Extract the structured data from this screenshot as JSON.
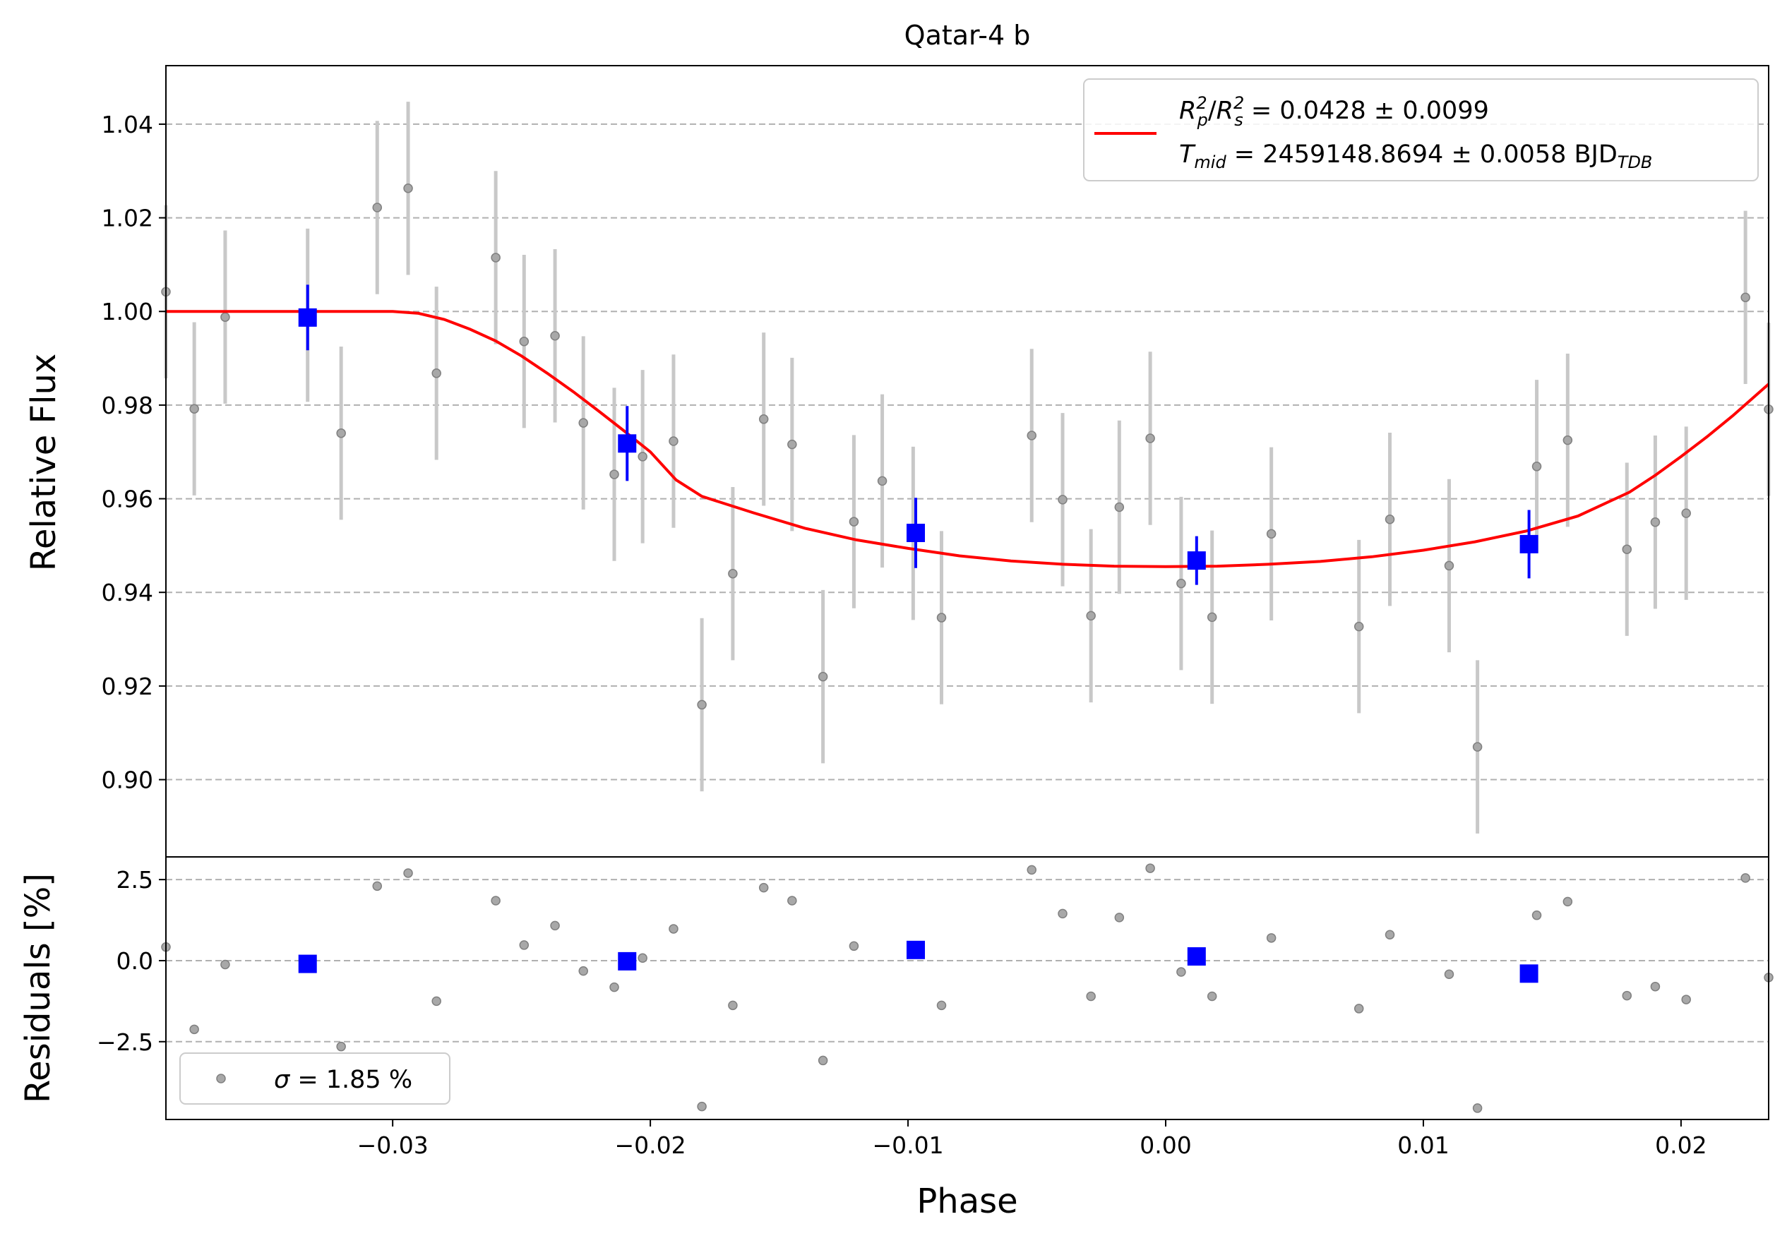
{
  "chart_data": [
    {
      "type": "scatter",
      "title": "Qatar-4 b",
      "xlabel": "",
      "ylabel": "Relative Flux",
      "xlim": [
        -0.0388,
        0.0234
      ],
      "ylim": [
        0.8835,
        1.0525
      ],
      "yticks": [
        0.9,
        0.92,
        0.94,
        0.96,
        0.98,
        1.0,
        1.02,
        1.04
      ],
      "ytick_labels": [
        "0.90",
        "0.92",
        "0.94",
        "0.96",
        "0.98",
        "1.00",
        "1.02",
        "1.04"
      ],
      "grid": "horizontal dashed",
      "legend_placement": "top-right",
      "legend": {
        "model_label_line1": "R_p^2/R_s^2 = 0.0428 ± 0.0099",
        "model_label_line2": "T_mid = 2459148.8694 ± 0.0058 BJD_TDB",
        "rp_symbol": "R",
        "rp_sub": "p",
        "rs_sup": "2",
        "rs_symbol": "R",
        "rs_sub": "s",
        "depth_text": " = 0.0428 ± 0.0099",
        "tmid_symbol": "T",
        "tmid_sub": "mid",
        "tmid_text": " = 2459148.8694 ± 0.0058 BJD",
        "tdb_sub": "TDB"
      },
      "series": [
        {
          "name": "",
          "kind": "raw",
          "color": "#808080",
          "x": [
            -0.0388,
            -0.0377,
            -0.0365,
            -0.0333,
            -0.032,
            -0.0306,
            -0.0294,
            -0.0283,
            -0.026,
            -0.0249,
            -0.0237,
            -0.0226,
            -0.0214,
            -0.0203,
            -0.0191,
            -0.018,
            -0.0168,
            -0.0156,
            -0.0145,
            -0.0133,
            -0.0121,
            -0.011,
            -0.0098,
            -0.0087,
            -0.0052,
            -0.004,
            -0.0029,
            -0.0018,
            -0.0006,
            0.0006,
            0.0018,
            0.0041,
            0.0075,
            0.0087,
            0.011,
            0.0121,
            0.0144,
            0.0156,
            0.0179,
            0.019,
            0.0202,
            0.0225,
            0.0234
          ],
          "y": [
            1.0042,
            0.9792,
            0.9988,
            0.9992,
            0.974,
            1.0222,
            1.0263,
            0.9868,
            1.0115,
            0.9936,
            0.9948,
            0.9762,
            0.9652,
            0.969,
            0.9723,
            0.916,
            0.944,
            0.977,
            0.9716,
            0.922,
            0.9551,
            0.9638,
            0.9526,
            0.9346,
            0.9735,
            0.9598,
            0.935,
            0.9582,
            0.9729,
            0.9419,
            0.9347,
            0.9525,
            0.9327,
            0.9556,
            0.9457,
            0.907,
            0.9669,
            0.9725,
            0.9492,
            0.955,
            0.9569,
            1.003,
            0.9791
          ],
          "yerr": 0.0185
        },
        {
          "name": "",
          "kind": "binned",
          "color": "#0000ff",
          "x": [
            -0.0333,
            -0.0209,
            -0.0097,
            0.0012,
            0.0141
          ],
          "y": [
            0.9987,
            0.9718,
            0.9527,
            0.9468,
            0.9503
          ],
          "yerr": [
            0.007,
            0.008,
            0.0075,
            0.0052,
            0.0073
          ]
        },
        {
          "name": "",
          "kind": "model",
          "color": "#ff0000",
          "x": [
            -0.0388,
            -0.03,
            -0.029,
            -0.028,
            -0.027,
            -0.026,
            -0.025,
            -0.024,
            -0.023,
            -0.022,
            -0.021,
            -0.02,
            -0.019,
            -0.018,
            -0.016,
            -0.014,
            -0.012,
            -0.01,
            -0.008,
            -0.006,
            -0.004,
            -0.002,
            0.0,
            0.002,
            0.004,
            0.006,
            0.008,
            0.01,
            0.012,
            0.014,
            0.016,
            0.018,
            0.019,
            0.02,
            0.021,
            0.022,
            0.0234
          ],
          "y": [
            1.0,
            1.0,
            0.9996,
            0.9983,
            0.9962,
            0.9937,
            0.9905,
            0.9868,
            0.9829,
            0.9787,
            0.9744,
            0.97,
            0.964,
            0.9605,
            0.957,
            0.9537,
            0.9512,
            0.9494,
            0.9478,
            0.9467,
            0.946,
            0.9456,
            0.9455,
            0.9456,
            0.946,
            0.9466,
            0.9476,
            0.949,
            0.9508,
            0.9531,
            0.9563,
            0.9614,
            0.965,
            0.969,
            0.9732,
            0.9777,
            0.9845
          ]
        }
      ]
    },
    {
      "type": "scatter",
      "title": "",
      "xlabel": "Phase",
      "ylabel": "Residuals [%]",
      "xlim": [
        -0.0388,
        0.0234
      ],
      "ylim": [
        -4.9,
        3.2
      ],
      "xticks": [
        -0.03,
        -0.02,
        -0.01,
        0.0,
        0.01,
        0.02
      ],
      "xtick_labels": [
        "−0.03",
        "−0.02",
        "−0.01",
        "0.00",
        "0.01",
        "0.02"
      ],
      "yticks": [
        -2.5,
        0.0,
        2.5
      ],
      "ytick_labels": [
        "−2.5",
        "0.0",
        "2.5"
      ],
      "grid": "horizontal dashed",
      "legend_placement": "lower-left",
      "legend": {
        "sigma_symbol": "σ",
        "sigma_text": " = 1.85 %"
      },
      "series": [
        {
          "name": "",
          "kind": "raw",
          "color": "#808080",
          "x": [
            -0.0388,
            -0.0377,
            -0.0365,
            -0.032,
            -0.0306,
            -0.0294,
            -0.0283,
            -0.026,
            -0.0249,
            -0.0237,
            -0.0226,
            -0.0214,
            -0.0203,
            -0.0191,
            -0.018,
            -0.0168,
            -0.0156,
            -0.0145,
            -0.0133,
            -0.0121,
            -0.0087,
            -0.0052,
            -0.004,
            -0.0029,
            -0.0018,
            -0.0006,
            0.0006,
            0.0018,
            0.0041,
            0.0075,
            0.0087,
            0.011,
            0.0121,
            0.0144,
            0.0156,
            0.0179,
            0.019,
            0.0202,
            0.0225,
            0.0234
          ],
          "y": [
            0.42,
            -2.12,
            -0.12,
            -2.65,
            2.3,
            2.7,
            -1.25,
            1.85,
            0.48,
            1.08,
            -0.32,
            -0.82,
            0.08,
            0.98,
            -4.5,
            -1.38,
            2.25,
            1.85,
            -3.08,
            0.45,
            -1.38,
            2.8,
            1.45,
            -1.1,
            1.33,
            2.85,
            -0.35,
            -1.1,
            0.7,
            -1.48,
            0.8,
            -0.42,
            -4.55,
            1.4,
            1.82,
            -1.08,
            -0.8,
            -1.2,
            2.55,
            -0.52
          ]
        },
        {
          "name": "",
          "kind": "binned",
          "color": "#0000ff",
          "x": [
            -0.0333,
            -0.0209,
            -0.0097,
            0.0012,
            0.0141
          ],
          "y": [
            -0.1,
            -0.02,
            0.33,
            0.13,
            -0.4
          ]
        }
      ]
    }
  ]
}
